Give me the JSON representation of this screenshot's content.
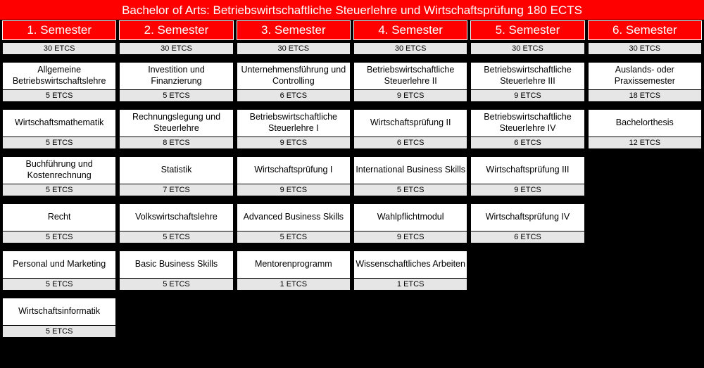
{
  "title": "Bachelor of Arts: Betriebswirtschaftliche Steuerlehre und Wirtschaftsprüfung 180 ECTS",
  "colors": {
    "header_bg": "#ff0000",
    "header_text": "#ffffff",
    "sem_border": "#ffffff",
    "ects_row_bg": "#e6e6e6",
    "module_bg": "#ffffff",
    "page_bg": "#000000",
    "text": "#000000"
  },
  "ects_label_suffix": " ETCS",
  "semesters": [
    {
      "label": "1. Semester",
      "ects": "30 ETCS",
      "modules": [
        {
          "name": "Allgemeine Betriebswirtschaftslehre",
          "ects": "5 ETCS"
        },
        {
          "name": "Wirtschaftsmathematik",
          "ects": "5 ETCS"
        },
        {
          "name": "Buchführung und Kostenrechnung",
          "ects": "5 ETCS"
        },
        {
          "name": "Recht",
          "ects": "5 ETCS"
        },
        {
          "name": "Personal und Marketing",
          "ects": "5 ETCS"
        },
        {
          "name": "Wirtschaftsinformatik",
          "ects": "5 ETCS"
        }
      ]
    },
    {
      "label": "2. Semester",
      "ects": "30 ETCS",
      "modules": [
        {
          "name": "Investition und Finanzierung",
          "ects": "5 ETCS"
        },
        {
          "name": "Rechnungslegung und Steuerlehre",
          "ects": "8 ETCS"
        },
        {
          "name": "Statistik",
          "ects": "7 ETCS"
        },
        {
          "name": "Volkswirtschaftslehre",
          "ects": "5 ETCS"
        },
        {
          "name": "Basic Business Skills",
          "ects": "5 ETCS"
        }
      ]
    },
    {
      "label": "3. Semester",
      "ects": "30 ETCS",
      "modules": [
        {
          "name": "Unternehmensführung und Controlling",
          "ects": "6 ETCS"
        },
        {
          "name": "Betriebswirtschaftliche Steuerlehre I",
          "ects": "9 ETCS"
        },
        {
          "name": "Wirtschaftsprüfung I",
          "ects": "9 ETCS"
        },
        {
          "name": "Advanced Business Skills",
          "ects": "5 ETCS"
        },
        {
          "name": "Mentorenprogramm",
          "ects": "1 ETCS"
        }
      ]
    },
    {
      "label": "4. Semester",
      "ects": "30 ETCS",
      "modules": [
        {
          "name": "Betriebswirtschaftliche Steuerlehre II",
          "ects": "9 ETCS"
        },
        {
          "name": "Wirtschaftsprüfung II",
          "ects": "6 ETCS"
        },
        {
          "name": "International Business Skills",
          "ects": "5 ETCS"
        },
        {
          "name": "Wahlpflichtmodul",
          "ects": "9 ETCS"
        },
        {
          "name": "Wissenschaftliches Arbeiten",
          "ects": "1 ETCS"
        }
      ]
    },
    {
      "label": "5. Semester",
      "ects": "30 ETCS",
      "modules": [
        {
          "name": "Betriebswirtschaftliche Steuerlehre III",
          "ects": "9 ETCS"
        },
        {
          "name": "Betriebswirtschaftliche Steuerlehre IV",
          "ects": "6 ETCS"
        },
        {
          "name": "Wirtschaftsprüfung III",
          "ects": "9 ETCS"
        },
        {
          "name": "Wirtschaftsprüfung IV",
          "ects": "6 ETCS"
        }
      ]
    },
    {
      "label": "6. Semester",
      "ects": "30 ETCS",
      "modules": [
        {
          "name": "Auslands- oder Praxissemester",
          "ects": "18 ETCS"
        },
        {
          "name": "Bachelorthesis",
          "ects": "12 ETCS"
        }
      ]
    }
  ]
}
